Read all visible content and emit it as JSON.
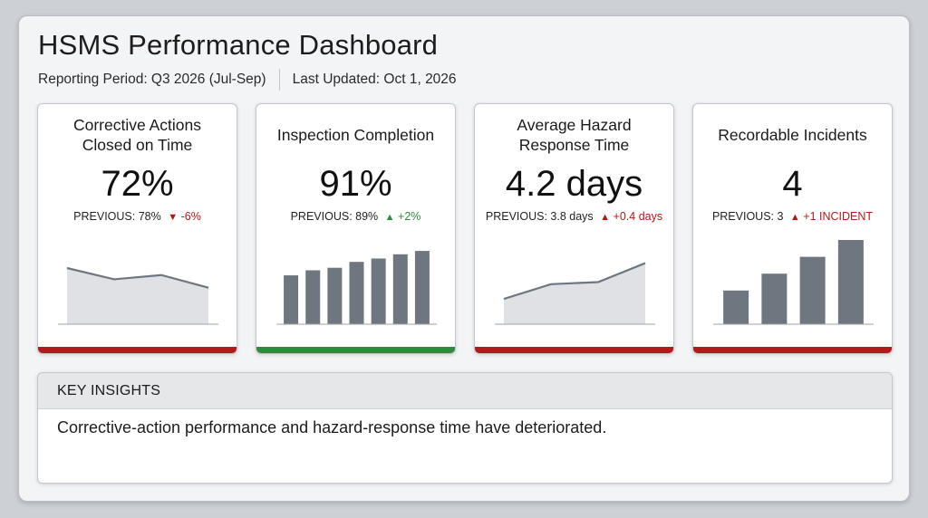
{
  "header": {
    "title": "HSMS Performance Dashboard",
    "reporting_period": "Reporting Period: Q3 2026 (Jul-Sep)",
    "last_updated": "Last Updated: Oct 1, 2026"
  },
  "colors": {
    "bad": "#b3181b",
    "good": "#2f8a3c",
    "chart_gray": "#6e7780"
  },
  "cards": [
    {
      "title": "Corrective Actions Closed on Time",
      "value": "72%",
      "previous": "PREVIOUS: 78%",
      "change": "-6%",
      "direction": "down",
      "status": "bad",
      "chart_data": {
        "type": "area",
        "values": [
          4.0,
          3.2,
          3.5,
          2.6
        ],
        "ylim": [
          0,
          6
        ]
      }
    },
    {
      "title": "Inspection Completion",
      "value": "91%",
      "previous": "PREVIOUS: 89%",
      "change": "+2%",
      "direction": "up",
      "status": "good",
      "chart_data": {
        "type": "bar",
        "values": [
          58,
          64,
          67,
          74,
          78,
          83,
          87
        ],
        "ylim": [
          0,
          100
        ]
      }
    },
    {
      "title": "Average Hazard Response Time",
      "value": "4.2 days",
      "previous": "PREVIOUS: 3.8 days",
      "change": "+0.4 days",
      "direction": "up",
      "status": "bad",
      "chart_data": {
        "type": "area",
        "values": [
          1.2,
          1.9,
          2.0,
          2.9
        ],
        "ylim": [
          0,
          4
        ]
      }
    },
    {
      "title": "Recordable Incidents",
      "value": "4",
      "previous": "PREVIOUS: 3",
      "change": "+1 INCIDENT",
      "direction": "up",
      "status": "bad",
      "chart_data": {
        "type": "bar",
        "values": [
          1.0,
          1.5,
          2.0,
          2.5
        ],
        "ylim": [
          0,
          2.5
        ]
      }
    }
  ],
  "insights": {
    "heading": "KEY INSIGHTS",
    "text": "Corrective-action performance and hazard-response time have deteriorated."
  }
}
